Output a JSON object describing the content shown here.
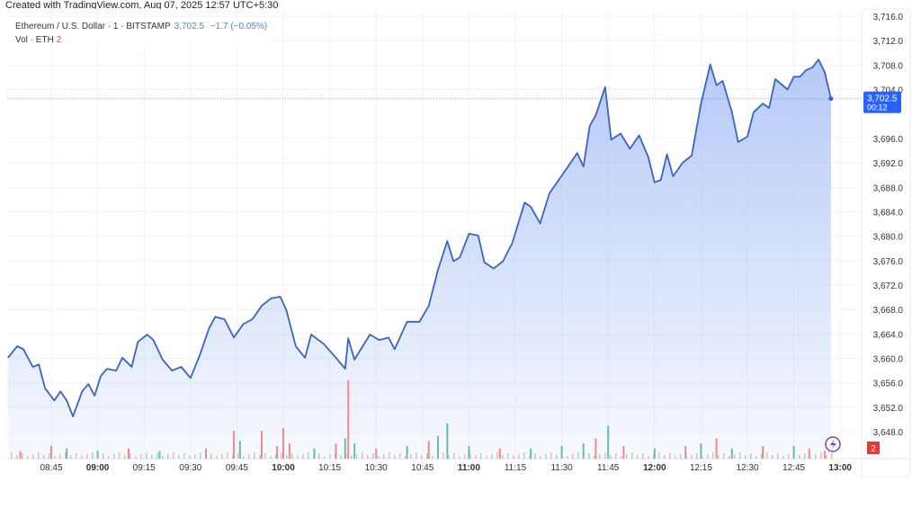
{
  "credit": "Created with TradingView.com, Aug 07, 2025 12:57 UTC+5:30",
  "legend": {
    "symbol": "Ethereum / U.S. Dollar · 1 · BITSTAMP",
    "last": "3,702.5",
    "change": "−1.7 (−0.05%)",
    "vol_label": "Vol · ETH",
    "vol_value": "2"
  },
  "price_badge": {
    "price": "3,702.5",
    "countdown": "00:12",
    "color": "#2962ff"
  },
  "vol_badge": "2",
  "colors": {
    "line": "#3a63c4",
    "fill": "#9db8f5",
    "up": "#66c0a0",
    "down": "#ef8a8a"
  },
  "chart_data": {
    "type": "area",
    "ylim": [
      3646,
      3717
    ],
    "y_ticks": [
      "3,716.0",
      "3,712.0",
      "3,708.0",
      "3,704.0",
      "3,696.0",
      "3,692.0",
      "3,688.0",
      "3,684.0",
      "3,680.0",
      "3,676.0",
      "3,672.0",
      "3,668.0",
      "3,664.0",
      "3,660.0",
      "3,656.0",
      "3,652.0",
      "3,648.0"
    ],
    "x_ticks": [
      {
        "t": "08:45",
        "bold": false
      },
      {
        "t": "09:00",
        "bold": true
      },
      {
        "t": "09:15",
        "bold": false
      },
      {
        "t": "09:30",
        "bold": false
      },
      {
        "t": "09:45",
        "bold": false
      },
      {
        "t": "10:00",
        "bold": true
      },
      {
        "t": "10:15",
        "bold": false
      },
      {
        "t": "10:30",
        "bold": false
      },
      {
        "t": "10:45",
        "bold": false
      },
      {
        "t": "11:00",
        "bold": true
      },
      {
        "t": "11:15",
        "bold": false
      },
      {
        "t": "11:30",
        "bold": false
      },
      {
        "t": "11:45",
        "bold": false
      },
      {
        "t": "12:00",
        "bold": true
      },
      {
        "t": "12:15",
        "bold": false
      },
      {
        "t": "12:30",
        "bold": false
      },
      {
        "t": "12:45",
        "bold": false
      },
      {
        "t": "13:00",
        "bold": true
      }
    ],
    "grid": true,
    "series": [
      {
        "points": [
          [
            "08:31",
            3660.1
          ],
          [
            "08:34",
            3662.0
          ],
          [
            "08:36",
            3661.5
          ],
          [
            "08:39",
            3658.6
          ],
          [
            "08:41",
            3659.0
          ],
          [
            "08:43",
            3655.1
          ],
          [
            "08:46",
            3653.1
          ],
          [
            "08:48",
            3654.6
          ],
          [
            "08:50",
            3653.1
          ],
          [
            "08:52",
            3650.5
          ],
          [
            "08:55",
            3654.6
          ],
          [
            "08:57",
            3655.8
          ],
          [
            "08:59",
            3653.9
          ],
          [
            "09:01",
            3657.1
          ],
          [
            "09:03",
            3658.3
          ],
          [
            "09:06",
            3658.0
          ],
          [
            "09:08",
            3660.1
          ],
          [
            "09:11",
            3658.6
          ],
          [
            "09:13",
            3662.7
          ],
          [
            "09:16",
            3663.9
          ],
          [
            "09:18",
            3663.0
          ],
          [
            "09:21",
            3659.8
          ],
          [
            "09:24",
            3658.0
          ],
          [
            "09:27",
            3658.6
          ],
          [
            "09:30",
            3656.8
          ],
          [
            "09:33",
            3660.5
          ],
          [
            "09:36",
            3664.9
          ],
          [
            "09:38",
            3666.8
          ],
          [
            "09:41",
            3666.4
          ],
          [
            "09:44",
            3663.4
          ],
          [
            "09:47",
            3665.6
          ],
          [
            "09:50",
            3666.4
          ],
          [
            "09:53",
            3668.6
          ],
          [
            "09:56",
            3669.8
          ],
          [
            "09:59",
            3670.1
          ],
          [
            "10:01",
            3667.9
          ],
          [
            "10:04",
            3662.0
          ],
          [
            "10:07",
            3660.1
          ],
          [
            "10:09",
            3663.9
          ],
          [
            "10:13",
            3662.4
          ],
          [
            "10:17",
            3660.1
          ],
          [
            "10:20",
            3658.3
          ],
          [
            "10:21",
            3663.3
          ],
          [
            "10:23",
            3659.8
          ],
          [
            "10:28",
            3663.9
          ],
          [
            "10:31",
            3663.0
          ],
          [
            "10:34",
            3663.4
          ],
          [
            "10:36",
            3661.5
          ],
          [
            "10:40",
            3666.0
          ],
          [
            "10:44",
            3666.0
          ],
          [
            "10:47",
            3668.6
          ],
          [
            "10:50",
            3674.5
          ],
          [
            "10:53",
            3679.2
          ],
          [
            "10:55",
            3675.9
          ],
          [
            "10:57",
            3676.5
          ],
          [
            "11:00",
            3680.4
          ],
          [
            "11:03",
            3680.1
          ],
          [
            "11:05",
            3675.7
          ],
          [
            "11:08",
            3674.7
          ],
          [
            "11:11",
            3675.9
          ],
          [
            "11:14",
            3678.9
          ],
          [
            "11:18",
            3685.5
          ],
          [
            "11:20",
            3684.8
          ],
          [
            "11:23",
            3682.1
          ],
          [
            "11:26",
            3687.0
          ],
          [
            "11:29",
            3689.2
          ],
          [
            "11:32",
            3691.4
          ],
          [
            "11:35",
            3693.6
          ],
          [
            "11:37",
            3691.4
          ],
          [
            "11:39",
            3698.0
          ],
          [
            "11:41",
            3699.8
          ],
          [
            "11:44",
            3704.4
          ],
          [
            "11:46",
            3695.8
          ],
          [
            "11:49",
            3696.8
          ],
          [
            "11:52",
            3694.3
          ],
          [
            "11:55",
            3696.5
          ],
          [
            "11:58",
            3692.9
          ],
          [
            "12:00",
            3688.8
          ],
          [
            "12:02",
            3689.2
          ],
          [
            "12:04",
            3693.4
          ],
          [
            "12:06",
            3689.8
          ],
          [
            "12:09",
            3692.0
          ],
          [
            "12:12",
            3693.2
          ],
          [
            "12:15",
            3701.7
          ],
          [
            "12:18",
            3708.1
          ],
          [
            "12:20",
            3704.7
          ],
          [
            "12:22",
            3705.4
          ],
          [
            "12:25",
            3700.3
          ],
          [
            "12:27",
            3695.4
          ],
          [
            "12:30",
            3696.3
          ],
          [
            "12:32",
            3700.3
          ],
          [
            "12:35",
            3701.7
          ],
          [
            "12:37",
            3701.0
          ],
          [
            "12:39",
            3705.7
          ],
          [
            "12:43",
            3704.0
          ],
          [
            "12:45",
            3706.1
          ],
          [
            "12:47",
            3706.1
          ],
          [
            "12:49",
            3707.2
          ],
          [
            "12:51",
            3707.6
          ],
          [
            "12:53",
            3708.9
          ],
          [
            "12:55",
            3706.8
          ],
          [
            "12:57",
            3702.5
          ]
        ]
      }
    ],
    "volume": [
      [
        "08:35",
        2,
        "down"
      ],
      [
        "08:45",
        4,
        "down"
      ],
      [
        "08:50",
        3,
        "up"
      ],
      [
        "09:00",
        2,
        "up"
      ],
      [
        "09:10",
        3,
        "down"
      ],
      [
        "09:20",
        2,
        "up"
      ],
      [
        "09:35",
        3,
        "down"
      ],
      [
        "09:44",
        10,
        "down"
      ],
      [
        "09:46",
        6,
        "up"
      ],
      [
        "09:53",
        10,
        "down"
      ],
      [
        "09:58",
        4,
        "down"
      ],
      [
        "10:00",
        11,
        "down"
      ],
      [
        "10:02",
        5,
        "down"
      ],
      [
        "10:10",
        3,
        "up"
      ],
      [
        "10:17",
        5,
        "down"
      ],
      [
        "10:20",
        7,
        "up"
      ],
      [
        "10:21",
        30,
        "down"
      ],
      [
        "10:23",
        5,
        "up"
      ],
      [
        "10:30",
        3,
        "down"
      ],
      [
        "10:40",
        4,
        "up"
      ],
      [
        "10:47",
        6,
        "down"
      ],
      [
        "10:50",
        8,
        "up"
      ],
      [
        "10:53",
        13,
        "up"
      ],
      [
        "11:00",
        4,
        "up"
      ],
      [
        "11:10",
        3,
        "down"
      ],
      [
        "11:20",
        3,
        "up"
      ],
      [
        "11:30",
        4,
        "up"
      ],
      [
        "11:37",
        5,
        "up"
      ],
      [
        "11:41",
        7,
        "down"
      ],
      [
        "11:45",
        12,
        "up"
      ],
      [
        "11:50",
        4,
        "down"
      ],
      [
        "12:00",
        3,
        "up"
      ],
      [
        "12:10",
        4,
        "down"
      ],
      [
        "12:15",
        5,
        "up"
      ],
      [
        "12:20",
        7,
        "down"
      ],
      [
        "12:25",
        3,
        "up"
      ],
      [
        "12:35",
        4,
        "down"
      ],
      [
        "12:45",
        4,
        "up"
      ],
      [
        "12:50",
        3,
        "down"
      ],
      [
        "12:55",
        2,
        "down"
      ]
    ]
  }
}
